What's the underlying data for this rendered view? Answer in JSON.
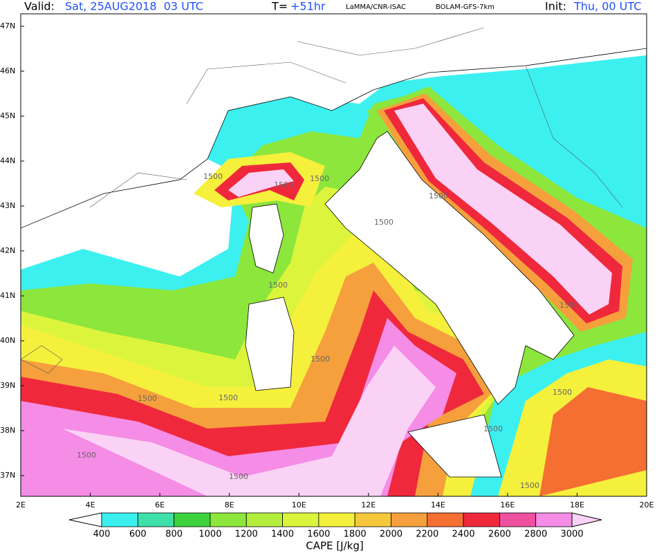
{
  "header": {
    "valid_label": "Valid:",
    "valid_value": "Sat, 25AUG2018  03 UTC",
    "forecast_label": "T=",
    "forecast_value": "+51hr",
    "source": "LaMMA/CNR-ISAC",
    "model": "BOLAM-GFS-7km",
    "init_label": "Init:",
    "init_value": "Thu, 00 UTC"
  },
  "map": {
    "lat_ticks": [
      {
        "value": 47,
        "label": "47N"
      },
      {
        "value": 46,
        "label": "46N"
      },
      {
        "value": 45,
        "label": "45N"
      },
      {
        "value": 44,
        "label": "44N"
      },
      {
        "value": 43,
        "label": "43N"
      },
      {
        "value": 42,
        "label": "42N"
      },
      {
        "value": 41,
        "label": "41N"
      },
      {
        "value": 40,
        "label": "40N"
      },
      {
        "value": 39,
        "label": "39N"
      },
      {
        "value": 38,
        "label": "38N"
      },
      {
        "value": 37,
        "label": "37N"
      }
    ],
    "lon_ticks": [
      {
        "value": 2,
        "label": "2E"
      },
      {
        "value": 4,
        "label": "4E"
      },
      {
        "value": 6,
        "label": "6E"
      },
      {
        "value": 8,
        "label": "8E"
      },
      {
        "value": 10,
        "label": "10E"
      },
      {
        "value": 12,
        "label": "12E"
      },
      {
        "value": 14,
        "label": "14E"
      },
      {
        "value": 16,
        "label": "16E"
      },
      {
        "value": 18,
        "label": "18E"
      },
      {
        "value": 20,
        "label": "20E"
      }
    ],
    "contour_labels": [
      "1500",
      "1500",
      "1500",
      "1500",
      "1500",
      "1500",
      "1500",
      "1500",
      "1500",
      "1500",
      "1500",
      "1500",
      "1500",
      "1500",
      "1500"
    ]
  },
  "colorbar": {
    "title": "CAPE [J/kg]",
    "levels": [
      400,
      600,
      800,
      1000,
      1200,
      1400,
      1600,
      1800,
      2000,
      2200,
      2400,
      2600,
      2800,
      3000
    ],
    "colors": [
      "#3cf0f0",
      "#3ce0a8",
      "#3cd23c",
      "#8ce63c",
      "#b4ee3c",
      "#dcf53c",
      "#f5f03c",
      "#f5c83c",
      "#f5a03c",
      "#f56e32",
      "#f0283c",
      "#f050a0",
      "#f58ce6",
      "#fad2f5"
    ],
    "under_color": "#ffffff"
  }
}
